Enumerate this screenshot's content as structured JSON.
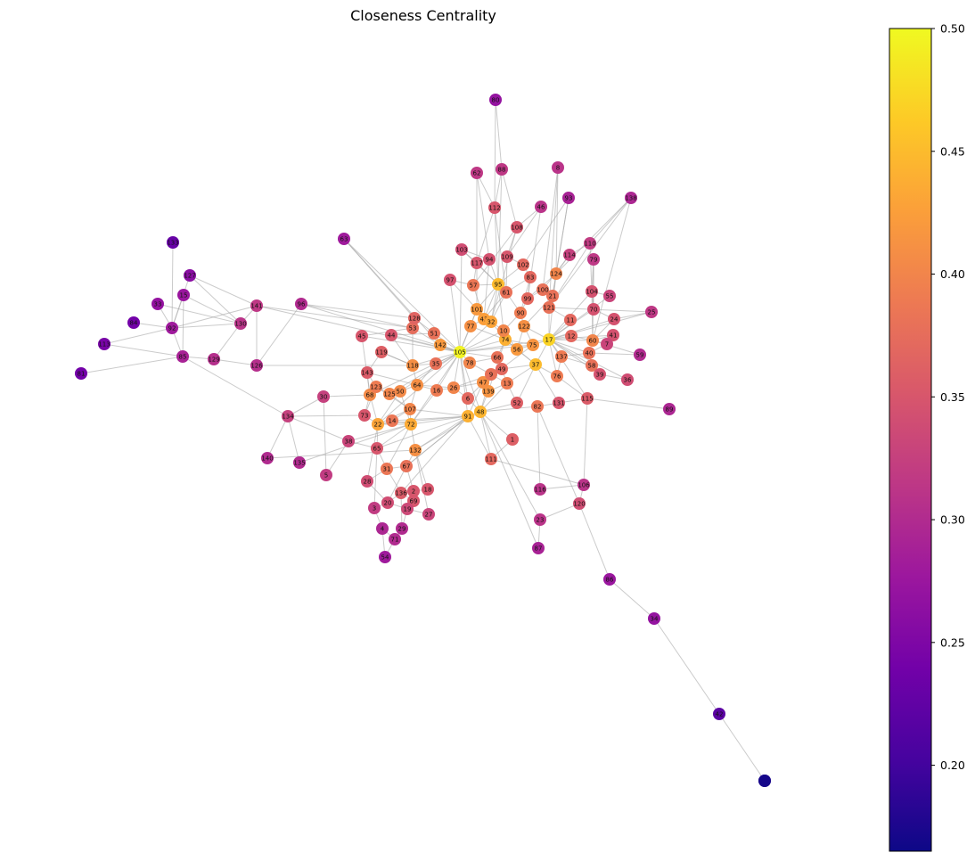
{
  "title": "Closeness Centrality",
  "colorbar": {
    "min": 0.165,
    "max": 0.5,
    "ticks": [
      "0.20",
      "0.25",
      "0.30",
      "0.35",
      "0.40",
      "0.45",
      "0.50"
    ],
    "colormap": "plasma",
    "stops": [
      "#0d0887",
      "#46039f",
      "#7201a8",
      "#9c179e",
      "#bd3786",
      "#d8576b",
      "#ed7953",
      "#fb9f3a",
      "#fdca26",
      "#f0f921"
    ]
  },
  "nodes": [
    {
      "id": "105",
      "v": 0.495
    },
    {
      "id": "17",
      "v": 0.47
    },
    {
      "id": "37",
      "v": 0.45
    },
    {
      "id": "48",
      "v": 0.445
    },
    {
      "id": "95",
      "v": 0.45
    },
    {
      "id": "74",
      "v": 0.44
    },
    {
      "id": "91",
      "v": 0.44
    },
    {
      "id": "72",
      "v": 0.435
    },
    {
      "id": "22",
      "v": 0.43
    },
    {
      "id": "43",
      "v": 0.425
    },
    {
      "id": "32",
      "v": 0.43
    },
    {
      "id": "56",
      "v": 0.42
    },
    {
      "id": "142",
      "v": 0.42
    },
    {
      "id": "101",
      "v": 0.42
    },
    {
      "id": "77",
      "v": 0.41
    },
    {
      "id": "75",
      "v": 0.415
    },
    {
      "id": "139",
      "v": 0.415
    },
    {
      "id": "47",
      "v": 0.41
    },
    {
      "id": "132",
      "v": 0.41
    },
    {
      "id": "10",
      "v": 0.4
    },
    {
      "id": "122",
      "v": 0.41
    },
    {
      "id": "118",
      "v": 0.41
    },
    {
      "id": "64",
      "v": 0.41
    },
    {
      "id": "107",
      "v": 0.4
    },
    {
      "id": "50",
      "v": 0.405
    },
    {
      "id": "68",
      "v": 0.405
    },
    {
      "id": "125",
      "v": 0.4
    },
    {
      "id": "78",
      "v": 0.4
    },
    {
      "id": "60",
      "v": 0.4
    },
    {
      "id": "26",
      "v": 0.4
    },
    {
      "id": "16",
      "v": 0.39
    },
    {
      "id": "123",
      "v": 0.39
    },
    {
      "id": "124",
      "v": 0.4
    },
    {
      "id": "90",
      "v": 0.39
    },
    {
      "id": "13",
      "v": 0.39
    },
    {
      "id": "82",
      "v": 0.385
    },
    {
      "id": "76",
      "v": 0.39
    },
    {
      "id": "137",
      "v": 0.39
    },
    {
      "id": "14",
      "v": 0.385
    },
    {
      "id": "57",
      "v": 0.385
    },
    {
      "id": "31",
      "v": 0.385
    },
    {
      "id": "67",
      "v": 0.38
    },
    {
      "id": "61",
      "v": 0.38
    },
    {
      "id": "21",
      "v": 0.38
    },
    {
      "id": "9",
      "v": 0.38
    },
    {
      "id": "66",
      "v": 0.38
    },
    {
      "id": "6",
      "v": 0.37
    },
    {
      "id": "35",
      "v": 0.38
    },
    {
      "id": "51",
      "v": 0.38
    },
    {
      "id": "53",
      "v": 0.375
    },
    {
      "id": "100",
      "v": 0.38
    },
    {
      "id": "121",
      "v": 0.38
    },
    {
      "id": "99",
      "v": 0.37
    },
    {
      "id": "58",
      "v": 0.38
    },
    {
      "id": "40",
      "v": 0.38
    },
    {
      "id": "12",
      "v": 0.37
    },
    {
      "id": "11",
      "v": 0.37
    },
    {
      "id": "49",
      "v": 0.37
    },
    {
      "id": "111",
      "v": 0.37
    },
    {
      "id": "102",
      "v": 0.37
    },
    {
      "id": "128",
      "v": 0.365
    },
    {
      "id": "83",
      "v": 0.37
    },
    {
      "id": "1",
      "v": 0.36
    },
    {
      "id": "52",
      "v": 0.36
    },
    {
      "id": "119",
      "v": 0.36
    },
    {
      "id": "143",
      "v": 0.355
    },
    {
      "id": "73",
      "v": 0.35
    },
    {
      "id": "65",
      "v": 0.35
    },
    {
      "id": "136",
      "v": 0.355
    },
    {
      "id": "2",
      "v": 0.35
    },
    {
      "id": "18",
      "v": 0.35
    },
    {
      "id": "69",
      "v": 0.35
    },
    {
      "id": "45",
      "v": 0.35
    },
    {
      "id": "44",
      "v": 0.35
    },
    {
      "id": "115",
      "v": 0.355
    },
    {
      "id": "131",
      "v": 0.35
    },
    {
      "id": "108",
      "v": 0.35
    },
    {
      "id": "112",
      "v": 0.35
    },
    {
      "id": "117",
      "v": 0.35
    },
    {
      "id": "109",
      "v": 0.35
    },
    {
      "id": "94",
      "v": 0.345
    },
    {
      "id": "97",
      "v": 0.345
    },
    {
      "id": "104",
      "v": 0.345
    },
    {
      "id": "70",
      "v": 0.345
    },
    {
      "id": "24",
      "v": 0.345
    },
    {
      "id": "41",
      "v": 0.345
    },
    {
      "id": "39",
      "v": 0.345
    },
    {
      "id": "36",
      "v": 0.34
    },
    {
      "id": "120",
      "v": 0.34
    },
    {
      "id": "103",
      "v": 0.34
    },
    {
      "id": "28",
      "v": 0.34
    },
    {
      "id": "20",
      "v": 0.34
    },
    {
      "id": "19",
      "v": 0.335
    },
    {
      "id": "27",
      "v": 0.33
    },
    {
      "id": "38",
      "v": 0.33
    },
    {
      "id": "7",
      "v": 0.33
    },
    {
      "id": "55",
      "v": 0.33
    },
    {
      "id": "114",
      "v": 0.325
    },
    {
      "id": "30",
      "v": 0.325
    },
    {
      "id": "134",
      "v": 0.325
    },
    {
      "id": "5",
      "v": 0.32
    },
    {
      "id": "3",
      "v": 0.32
    },
    {
      "id": "110",
      "v": 0.32
    },
    {
      "id": "25",
      "v": 0.315
    },
    {
      "id": "79",
      "v": 0.315
    },
    {
      "id": "116",
      "v": 0.31
    },
    {
      "id": "23",
      "v": 0.31
    },
    {
      "id": "106",
      "v": 0.31
    },
    {
      "id": "62",
      "v": 0.315
    },
    {
      "id": "88",
      "v": 0.315
    },
    {
      "id": "46",
      "v": 0.31
    },
    {
      "id": "8",
      "v": 0.31
    },
    {
      "id": "141",
      "v": 0.315
    },
    {
      "id": "130",
      "v": 0.31
    },
    {
      "id": "126",
      "v": 0.305
    },
    {
      "id": "129",
      "v": 0.305
    },
    {
      "id": "135",
      "v": 0.3
    },
    {
      "id": "140",
      "v": 0.3
    },
    {
      "id": "29",
      "v": 0.3
    },
    {
      "id": "71",
      "v": 0.3
    },
    {
      "id": "4",
      "v": 0.295
    },
    {
      "id": "59",
      "v": 0.3
    },
    {
      "id": "96",
      "v": 0.3
    },
    {
      "id": "89",
      "v": 0.295
    },
    {
      "id": "138",
      "v": 0.295
    },
    {
      "id": "93",
      "v": 0.29
    },
    {
      "id": "85",
      "v": 0.29
    },
    {
      "id": "87",
      "v": 0.29
    },
    {
      "id": "92",
      "v": 0.28
    },
    {
      "id": "54",
      "v": 0.28
    },
    {
      "id": "63",
      "v": 0.28
    },
    {
      "id": "15",
      "v": 0.275
    },
    {
      "id": "86",
      "v": 0.275
    },
    {
      "id": "34",
      "v": 0.27
    },
    {
      "id": "33",
      "v": 0.27
    },
    {
      "id": "80",
      "v": 0.27
    },
    {
      "id": "127",
      "v": 0.26
    },
    {
      "id": "113",
      "v": 0.245
    },
    {
      "id": "84",
      "v": 0.24
    },
    {
      "id": "133",
      "v": 0.23
    },
    {
      "id": "81",
      "v": 0.24
    },
    {
      "id": "42",
      "v": 0.22
    },
    {
      "id": "98",
      "v": 0.2
    },
    {
      "id": "99b",
      "v": 0.17
    }
  ]
}
